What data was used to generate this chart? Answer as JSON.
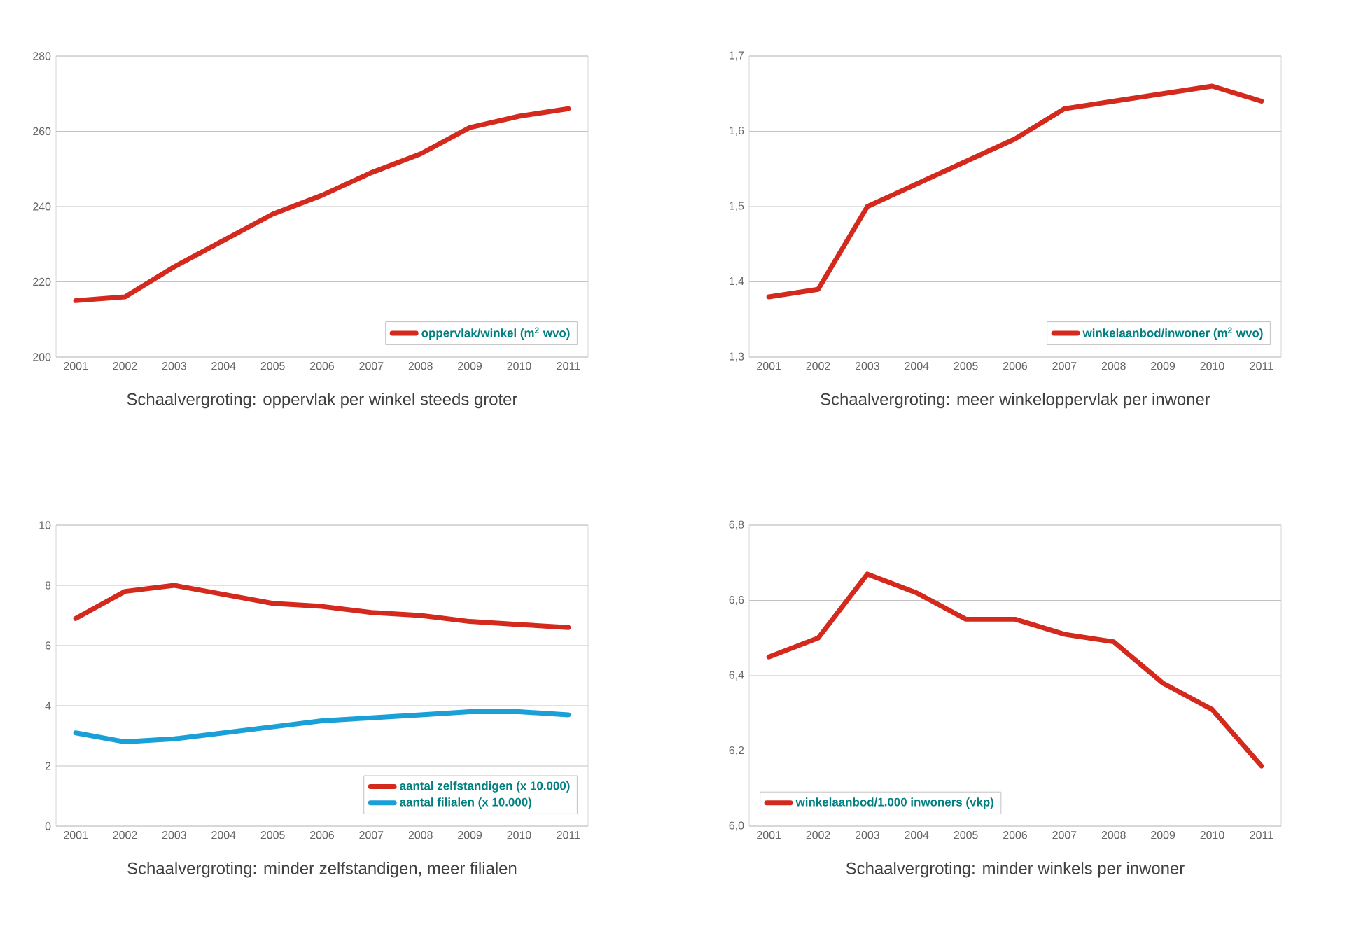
{
  "chart_data": [
    {
      "type": "line",
      "title": "Schaalvergroting: oppervlak per winkel steeds groter",
      "categories": [
        "2001",
        "2002",
        "2003",
        "2004",
        "2005",
        "2006",
        "2007",
        "2008",
        "2009",
        "2010",
        "2011"
      ],
      "series": [
        {
          "name": "oppervlak/winkel (m$^{2}$ wvo)",
          "color": "#d42a1e",
          "values": [
            215,
            216,
            224,
            231,
            238,
            243,
            249,
            254,
            261,
            264,
            266
          ]
        }
      ],
      "ylim": [
        200,
        280
      ],
      "yticks": [
        200,
        220,
        240,
        260,
        280
      ],
      "grid": "y",
      "legend": "bottom right"
    },
    {
      "type": "line",
      "title": "Schaalvergroting: meer winkeloppervlak per inwoner",
      "categories": [
        "2001",
        "2002",
        "2003",
        "2004",
        "2005",
        "2006",
        "2007",
        "2008",
        "2009",
        "2010",
        "2011"
      ],
      "series": [
        {
          "name": "winkelaanbod/inwoner (m$^{2}$ wvo)",
          "color": "#d42a1e",
          "values": [
            1.38,
            1.39,
            1.5,
            1.53,
            1.56,
            1.59,
            1.63,
            1.64,
            1.65,
            1.66,
            1.64
          ]
        }
      ],
      "ylim": [
        1.3,
        1.7
      ],
      "yticks": [
        {
          "value": 1.3,
          "label": "1,3"
        },
        {
          "value": 1.4,
          "label": "1,4"
        },
        {
          "value": 1.5,
          "label": "1,5"
        },
        {
          "value": 1.6,
          "label": "1,6"
        },
        {
          "value": 1.7,
          "label": "1,7"
        }
      ],
      "grid": "y",
      "legend": "bottom right"
    },
    {
      "type": "line",
      "title": "Schaalvergroting: minder zelfstandigen, meer filialen",
      "categories": [
        "2001",
        "2002",
        "2003",
        "2004",
        "2005",
        "2006",
        "2007",
        "2008",
        "2009",
        "2010",
        "2011"
      ],
      "series": [
        {
          "name": "aantal zelfstandigen (x 10.000)",
          "color": "#d42a1e",
          "values": [
            6.9,
            7.8,
            8.0,
            7.7,
            7.4,
            7.3,
            7.1,
            7.0,
            6.8,
            6.7,
            6.6
          ]
        },
        {
          "name": "aantal filialen (x 10.000)",
          "color": "#1a9fd6",
          "values": [
            3.1,
            2.8,
            2.9,
            3.1,
            3.3,
            3.5,
            3.6,
            3.7,
            3.8,
            3.8,
            3.7
          ]
        }
      ],
      "ylim": [
        0,
        10
      ],
      "yticks": [
        0,
        2,
        4,
        6,
        8,
        10
      ],
      "grid": "y",
      "legend": "bottom right"
    },
    {
      "type": "line",
      "title": "Schaalvergroting: minder winkels per inwoner",
      "categories": [
        "2001",
        "2002",
        "2003",
        "2004",
        "2005",
        "2006",
        "2007",
        "2008",
        "2009",
        "2010",
        "2011"
      ],
      "series": [
        {
          "name": "winkelaanbod/1.000 inwoners (vkp)",
          "color": "#d42a1e",
          "values": [
            6.45,
            6.5,
            6.67,
            6.62,
            6.55,
            6.55,
            6.51,
            6.49,
            6.38,
            6.31,
            6.16
          ]
        }
      ],
      "ylim": [
        6.0,
        6.8
      ],
      "yticks": [
        {
          "value": 6.0,
          "label": "6,0"
        },
        {
          "value": 6.2,
          "label": "6,2"
        },
        {
          "value": 6.4,
          "label": "6,4"
        },
        {
          "value": 6.6,
          "label": "6,6"
        },
        {
          "value": 6.8,
          "label": "6,8"
        }
      ],
      "grid": "y",
      "legend": "bottom left"
    }
  ]
}
